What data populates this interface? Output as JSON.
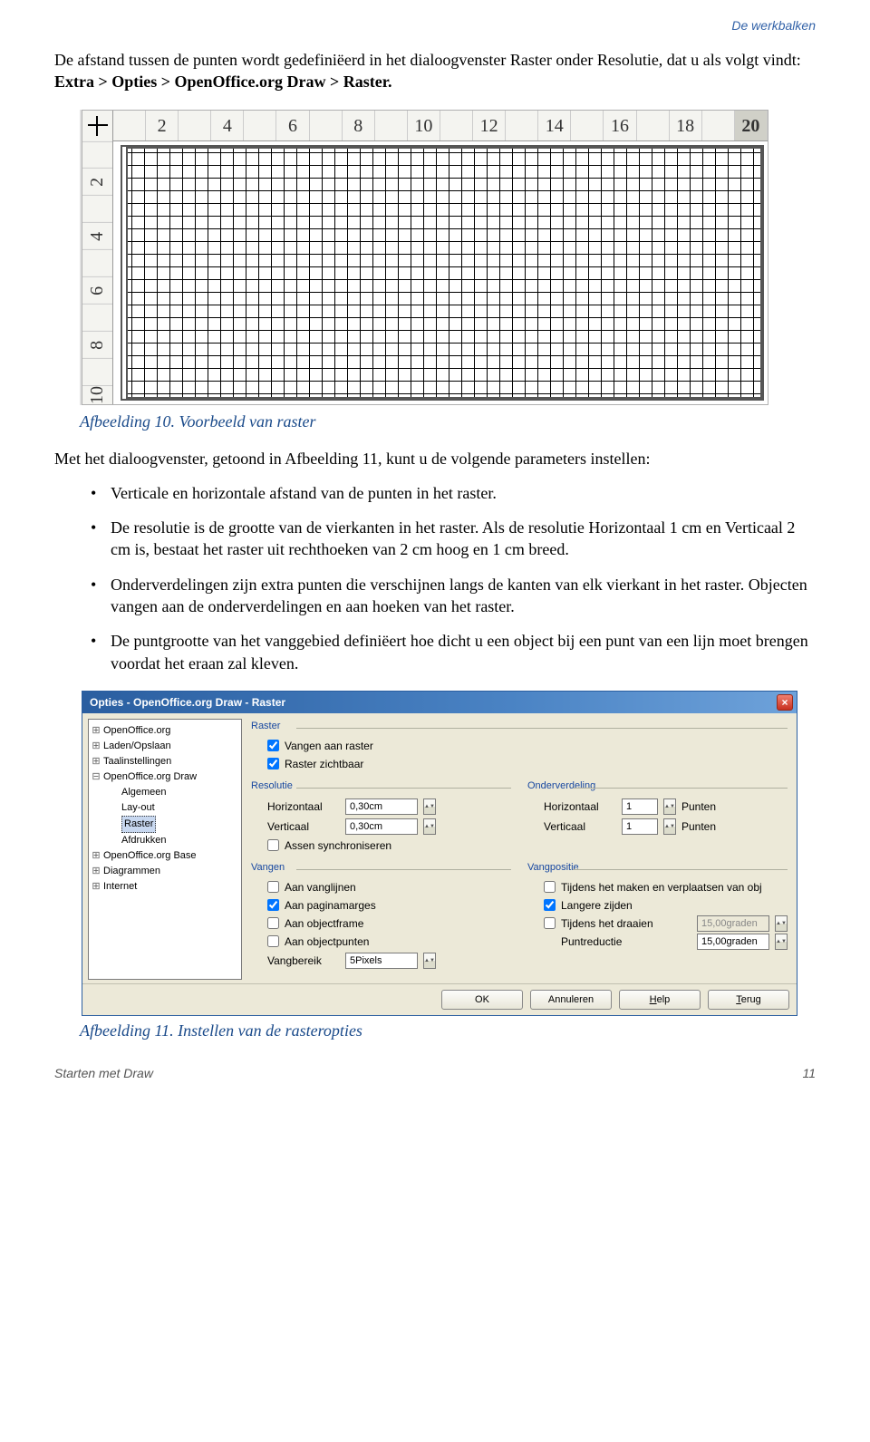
{
  "header": {
    "section": "De werkbalken"
  },
  "intro": {
    "pre": "De afstand tussen de punten wordt gedefiniëerd in het dialoogvenster Raster onder Resolutie, dat u als volgt vindt: ",
    "path": "Extra > Opties > OpenOffice.org Draw > Raster."
  },
  "fig10": {
    "h_ticks": [
      "",
      "2",
      "",
      "4",
      "",
      "6",
      "",
      "8",
      "",
      "10",
      "",
      "12",
      "",
      "14",
      "",
      "16",
      "",
      "18",
      "",
      "20"
    ],
    "v_ticks": [
      "",
      "2",
      "",
      "4",
      "",
      "6",
      "",
      "8",
      "",
      "10"
    ],
    "grid_color": "#000000",
    "caption": "Afbeelding 10. Voorbeeld van raster"
  },
  "after_fig_para": "Met het dialoogvenster, getoond in Afbeelding 11, kunt u de volgende parameters instellen:",
  "bullets": [
    "Verticale en horizontale afstand van de punten in het raster.",
    "De resolutie is de grootte van de vierkanten in het raster. Als de resolutie Horizontaal 1 cm en Verticaal 2 cm is, bestaat het raster uit rechthoeken van 2 cm hoog en 1 cm breed.",
    "Onderverdelingen zijn extra punten die verschijnen langs de kanten van elk vierkant in het raster. Objecten vangen aan de onderverdelingen en aan hoeken van het raster.",
    "De puntgrootte van het vanggebied definiëert hoe dicht u een object bij een punt van een lijn moet brengen voordat het eraan zal kleven."
  ],
  "dialog": {
    "title": "Opties - OpenOffice.org Draw - Raster",
    "tree": [
      {
        "exp": "+",
        "label": "OpenOffice.org",
        "depth": 0
      },
      {
        "exp": "+",
        "label": "Laden/Opslaan",
        "depth": 0
      },
      {
        "exp": "+",
        "label": "Taalinstellingen",
        "depth": 0
      },
      {
        "exp": "−",
        "label": "OpenOffice.org Draw",
        "depth": 0
      },
      {
        "exp": "",
        "label": "Algemeen",
        "depth": 1
      },
      {
        "exp": "",
        "label": "Lay-out",
        "depth": 1
      },
      {
        "exp": "",
        "label": "Raster",
        "depth": 1,
        "selected": true
      },
      {
        "exp": "",
        "label": "Afdrukken",
        "depth": 1
      },
      {
        "exp": "+",
        "label": "OpenOffice.org Base",
        "depth": 0
      },
      {
        "exp": "+",
        "label": "Diagrammen",
        "depth": 0
      },
      {
        "exp": "+",
        "label": "Internet",
        "depth": 0
      }
    ],
    "groups": {
      "raster": {
        "title": "Raster",
        "snap_grid": {
          "checked": true,
          "label": "Vangen aan raster"
        },
        "visible": {
          "checked": true,
          "label": "Raster zichtbaar"
        }
      },
      "resolutie": {
        "title": "Resolutie",
        "h_label": "Horizontaal",
        "h_value": "0,30cm",
        "v_label": "Verticaal",
        "v_value": "0,30cm",
        "sync": {
          "checked": false,
          "label": "Assen synchroniseren"
        }
      },
      "onderverdeling": {
        "title": "Onderverdeling",
        "h_label": "Horizontaal",
        "h_value": "1",
        "h_unit": "Punten",
        "v_label": "Verticaal",
        "v_value": "1",
        "v_unit": "Punten"
      },
      "vangen": {
        "title": "Vangen",
        "items": [
          {
            "checked": false,
            "label": "Aan vanglijnen"
          },
          {
            "checked": true,
            "label": "Aan paginamarges"
          },
          {
            "checked": false,
            "label": "Aan objectframe"
          },
          {
            "checked": false,
            "label": "Aan objectpunten"
          }
        ],
        "range_label": "Vangbereik",
        "range_value": "5Pixels"
      },
      "vangpositie": {
        "title": "Vangpositie",
        "items": [
          {
            "checked": false,
            "label": "Tijdens het maken en verplaatsen van obj"
          },
          {
            "checked": true,
            "label": "Langere zijden"
          },
          {
            "checked": false,
            "label": "Tijdens het draaien",
            "value": "15,00graden",
            "disabled": true
          },
          {
            "checked": null,
            "label": "Puntreductie",
            "value": "15,00graden"
          }
        ]
      }
    },
    "buttons": {
      "ok": "OK",
      "cancel": "Annuleren",
      "help": "Help",
      "back": "Terug"
    }
  },
  "fig11": {
    "caption": "Afbeelding 11. Instellen van de rasteropties"
  },
  "footer": {
    "left": "Starten met Draw",
    "page": "11"
  }
}
